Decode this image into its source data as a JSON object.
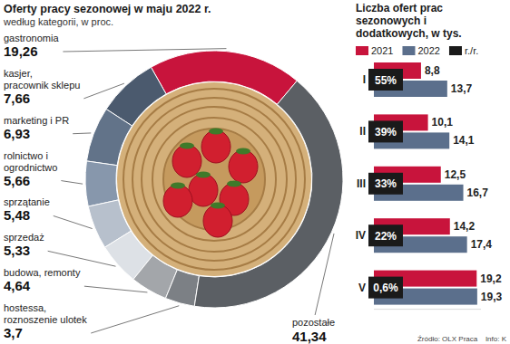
{
  "chart_data": [
    {
      "type": "pie",
      "title": "Oferty pracy sezonowej w maju 2022 r.",
      "subtitle": "według kategorii, w proc.",
      "categories": [
        "gastronomia",
        "kasjer, pracownik sklepu",
        "marketing i PR",
        "rolnictwo i ogrodnictwo",
        "sprzątanie",
        "sprzedaż",
        "budowa, remonty",
        "hostessa, roznoszenie ulotek",
        "pozostałe"
      ],
      "values": [
        19.26,
        7.66,
        6.93,
        5.66,
        5.48,
        5.33,
        4.64,
        3.7,
        41.34
      ],
      "value_labels": [
        "19,26",
        "7,66",
        "6,93",
        "5,66",
        "5,48",
        "5,33",
        "4,64",
        "3,7",
        "41,34"
      ],
      "colors": [
        "#c8143c",
        "#4b5a6e",
        "#627389",
        "#8797ac",
        "#b7c0cc",
        "#dde1e6",
        "#a3a6aa",
        "#7c8085",
        "#5b5f64"
      ],
      "data_labels": true
    },
    {
      "type": "bar",
      "orientation": "horizontal",
      "title": "Liczba ofert prac sezonowych i dodatkowych, w tys.",
      "categories": [
        "I",
        "II",
        "III",
        "IV",
        "V"
      ],
      "series": [
        {
          "name": "2021",
          "color": "#c8143c",
          "values": [
            8.8,
            10.1,
            12.5,
            14.2,
            19.2
          ],
          "value_labels": [
            "8,8",
            "10,1",
            "12,5",
            "14,2",
            "19,2"
          ]
        },
        {
          "name": "2022",
          "color": "#5b6f8c",
          "values": [
            13.7,
            14.1,
            16.7,
            17.4,
            19.3
          ],
          "value_labels": [
            "13,7",
            "14,1",
            "16,7",
            "17,4",
            "19,3"
          ]
        }
      ],
      "change": {
        "name": "r./r.",
        "color": "#1a1a1a",
        "values": [
          55,
          39,
          33,
          22,
          0.6
        ],
        "value_labels": [
          "55%",
          "39%",
          "33%",
          "22%",
          "0,6%"
        ]
      },
      "xlim": [
        0,
        20
      ],
      "tick_labels": false,
      "legend": "top",
      "data_labels": true
    }
  ],
  "source": "Źródło: OLX Praca",
  "credit": "Info: K"
}
